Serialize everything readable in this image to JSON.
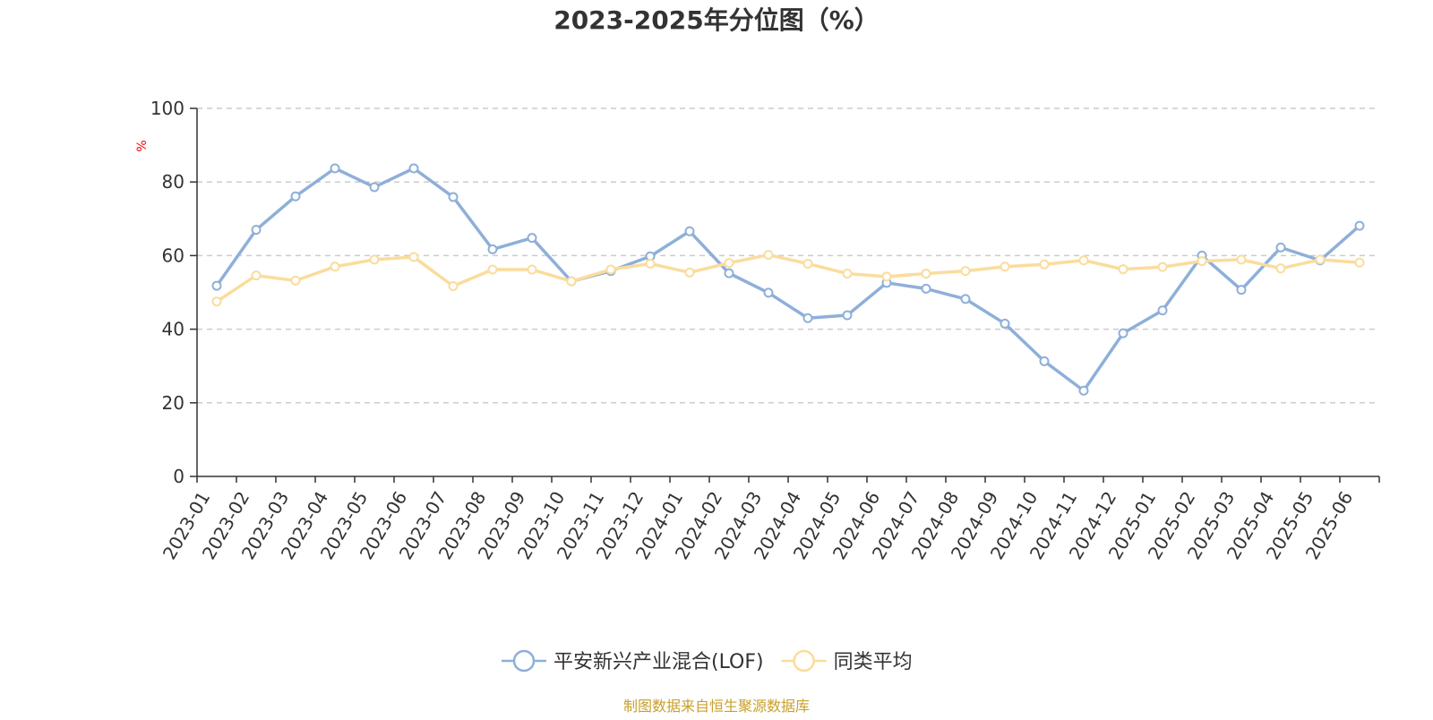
{
  "chart_data": {
    "type": "line",
    "title": "2023-2025年分位图（%）",
    "y_unit": "%",
    "ylim": [
      0,
      100
    ],
    "y_ticks": [
      0,
      20,
      40,
      60,
      80,
      100
    ],
    "grid": true,
    "legend_position": "bottom-center",
    "categories": [
      "2023-01",
      "2023-02",
      "2023-03",
      "2023-04",
      "2023-05",
      "2023-06",
      "2023-07",
      "2023-08",
      "2023-09",
      "2023-10",
      "2023-11",
      "2023-12",
      "2024-01",
      "2024-02",
      "2024-03",
      "2024-04",
      "2024-05",
      "2024-06",
      "2024-07",
      "2024-08",
      "2024-09",
      "2024-10",
      "2024-11",
      "2024-12",
      "2025-01",
      "2025-02",
      "2025-03",
      "2025-04",
      "2025-05",
      "2025-06"
    ],
    "series": [
      {
        "name": "平安新兴产业混合(LOF)",
        "color": "#8eafd9",
        "values": [
          51.8,
          67.0,
          76.1,
          83.7,
          78.6,
          83.7,
          75.9,
          61.7,
          64.8,
          53.0,
          55.8,
          59.8,
          66.6,
          55.2,
          49.9,
          43.0,
          43.8,
          52.6,
          51.0,
          48.2,
          41.5,
          31.3,
          23.3,
          38.9,
          45.1,
          60.0,
          50.7,
          62.2,
          58.7,
          68.1
        ]
      },
      {
        "name": "同类平均",
        "color": "#fadc9c",
        "values": [
          47.5,
          54.6,
          53.2,
          57.0,
          58.9,
          59.6,
          51.7,
          56.2,
          56.2,
          53.0,
          56.2,
          57.8,
          55.4,
          58.0,
          60.2,
          57.8,
          55.1,
          54.3,
          55.1,
          55.8,
          57.0,
          57.6,
          58.7,
          56.3,
          56.9,
          58.5,
          58.9,
          56.5,
          58.9,
          58.1
        ]
      }
    ]
  },
  "colors": {
    "axis": "#333333",
    "grid": "#cccccc",
    "y_unit": "#ff0000",
    "source": "#c8a02b"
  },
  "source_note": "制图数据来自恒生聚源数据库"
}
